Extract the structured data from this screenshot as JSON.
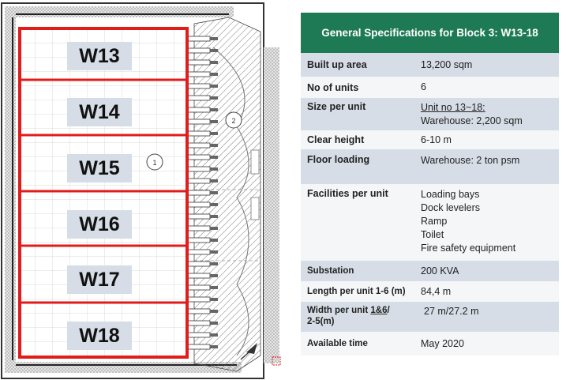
{
  "plan": {
    "units": [
      "W13",
      "W14",
      "W15",
      "W16",
      "W17",
      "W18"
    ],
    "circle_markers": [
      "1",
      "2"
    ]
  },
  "spec": {
    "title": "General Specifications for Block 3: W13-18",
    "rows": {
      "built_up_area": {
        "label": "Built up area",
        "value": "13,200 sqm"
      },
      "no_of_units": {
        "label": "No of units",
        "value": "6"
      },
      "size_per_unit": {
        "label": "Size per unit",
        "value_line1": "Unit no 13~18:",
        "value_line2": "Warehouse: 2,200 sqm"
      },
      "clear_height": {
        "label": "Clear height",
        "value": "6-10 m"
      },
      "floor_loading": {
        "label": "Floor loading",
        "value": "Warehouse: 2 ton psm"
      },
      "facilities": {
        "label": "Facilities per unit",
        "items": [
          "Loading bays",
          "Dock levelers",
          "Ramp",
          "Toilet",
          "Fire safety equipment"
        ]
      },
      "substation": {
        "label": "Substation",
        "value": "200 KVA"
      },
      "length_per_unit": {
        "label": "Length per unit 1-6 (m)",
        "value": "84,4 m"
      },
      "width_per_unit": {
        "label_line1_a": "Width per unit ",
        "label_line1_b": "1&6",
        "label_line1_c": "/",
        "label_line2": "2-5(m)",
        "value": "27 m/27.2 m"
      },
      "available_time": {
        "label": "Available time",
        "value": "May 2020"
      }
    }
  }
}
